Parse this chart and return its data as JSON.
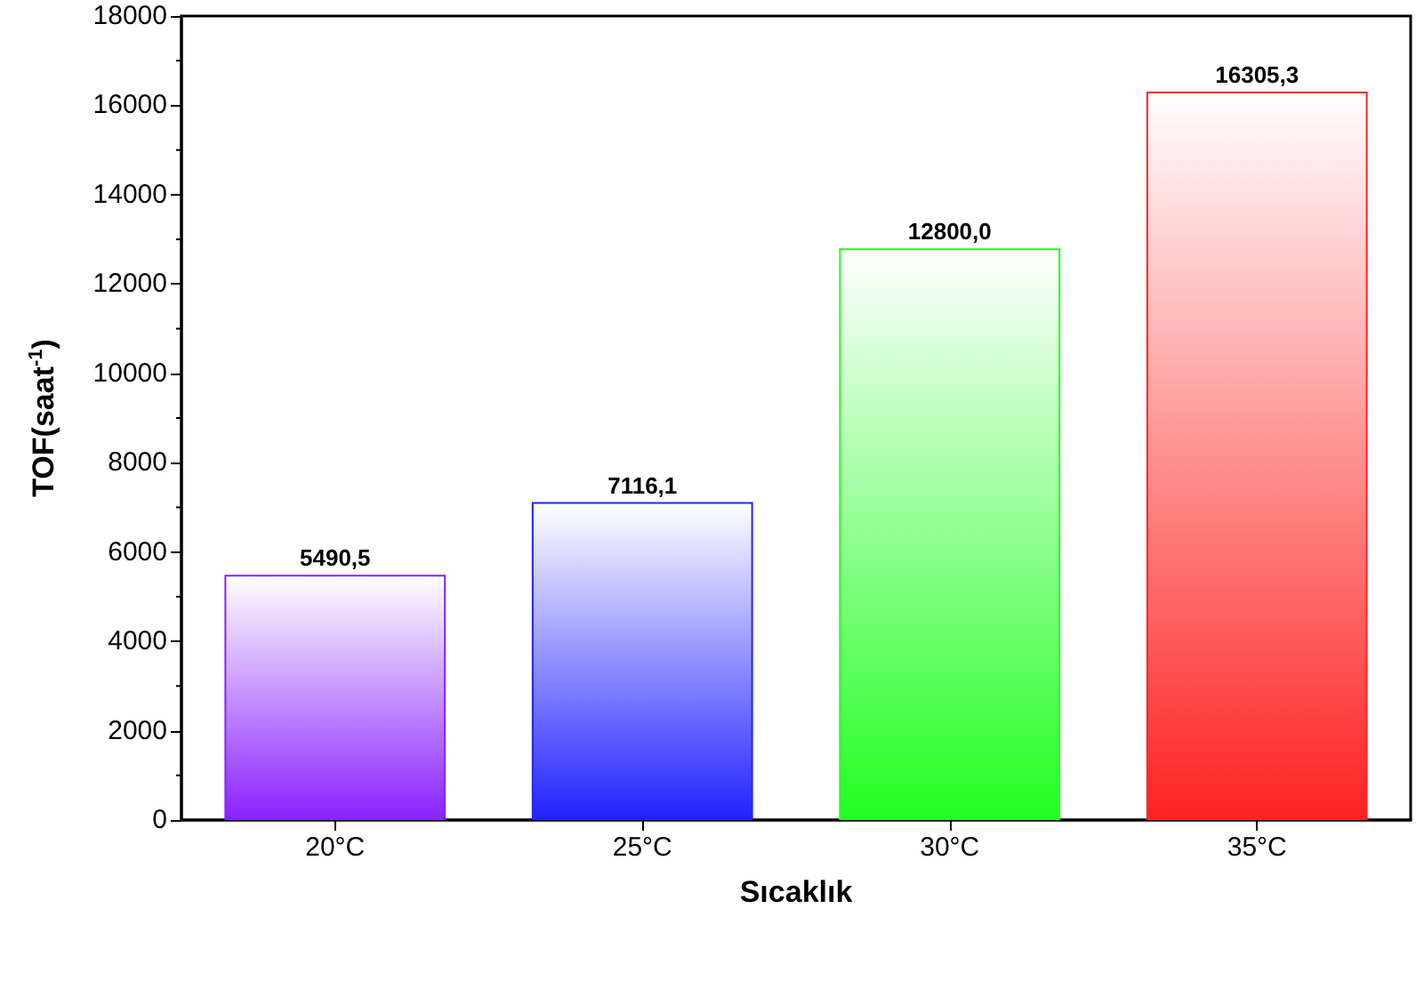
{
  "chart_data": {
    "type": "bar",
    "xlabel": "Sıcaklık",
    "ylabel": "TOF(saat$^{-1}$)",
    "categories": [
      "20°C",
      "25°C",
      "30°C",
      "35°C"
    ],
    "values": [
      5490.5,
      7116.1,
      12800.0,
      16305.3
    ],
    "value_labels": [
      "5490,5",
      "7116,1",
      "12800,0",
      "16305,3"
    ],
    "colors": [
      "#8a22ff",
      "#2222ff",
      "#22ff22",
      "#ff2222"
    ],
    "ylim": [
      0,
      18000
    ],
    "yticks": [
      0,
      2000,
      4000,
      6000,
      8000,
      10000,
      12000,
      14000,
      16000,
      18000
    ],
    "grid": false
  }
}
